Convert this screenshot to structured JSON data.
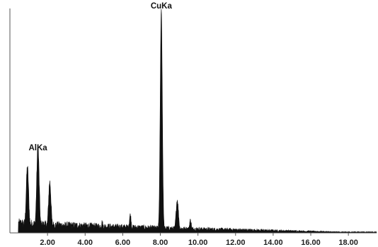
{
  "chart_data": {
    "type": "area",
    "title": "",
    "xlabel": "",
    "ylabel": "",
    "x_range": [
      0,
      19.5
    ],
    "y_range": [
      0,
      100
    ],
    "grid": false,
    "legend": "none",
    "x_ticks": [
      "2.00",
      "4.00",
      "6.00",
      "8.00",
      "10.00",
      "12.00",
      "14.00",
      "16.00",
      "18.00"
    ],
    "x_tick_values": [
      2,
      4,
      6,
      8,
      10,
      12,
      14,
      16,
      18
    ],
    "annotations": [
      {
        "label": "AlKa",
        "x": 1.49,
        "y": 36
      },
      {
        "label": "CuKa",
        "x": 8.05,
        "y": 100
      }
    ],
    "peaks": [
      {
        "x": 0.93,
        "y": 28
      },
      {
        "x": 1.49,
        "y": 37.5
      },
      {
        "x": 2.12,
        "y": 21.5
      },
      {
        "x": 4.9,
        "y": 3.5
      },
      {
        "x": 6.4,
        "y": 7
      },
      {
        "x": 8.05,
        "y": 100
      },
      {
        "x": 8.9,
        "y": 14
      },
      {
        "x": 9.6,
        "y": 5
      },
      {
        "x": 11.5,
        "y": 1
      }
    ],
    "colors": {
      "fill": "#101010",
      "axis": "#555555"
    }
  }
}
